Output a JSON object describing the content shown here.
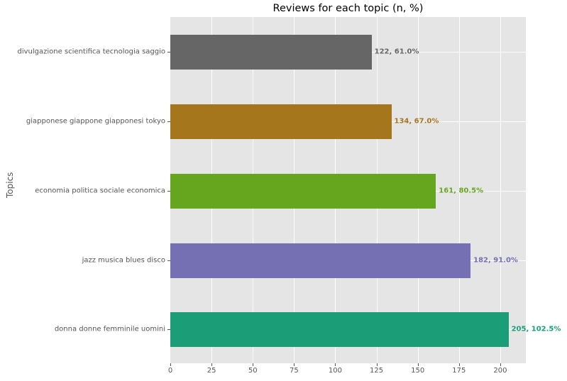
{
  "chart_data": {
    "type": "bar",
    "orientation": "horizontal",
    "title": "Reviews for each topic (n, %)",
    "xlabel": "",
    "ylabel": "Topics",
    "xlim": [
      0,
      215.5
    ],
    "xticks": [
      0,
      25,
      50,
      75,
      100,
      125,
      150,
      175,
      200
    ],
    "grid": true,
    "legend": null,
    "categories": [
      "donna donne femminile uomini",
      "jazz musica blues disco",
      "economia politica sociale economica",
      "giapponese giappone giapponesi tokyo",
      "divulgazione scientifica tecnologia saggio"
    ],
    "values": [
      205,
      182,
      161,
      134,
      122
    ],
    "percent": [
      102.5,
      91.0,
      80.5,
      67.0,
      61.0
    ],
    "labels": [
      "205, 102.5%",
      "182, 91.0%",
      "161, 80.5%",
      "134, 67.0%",
      "122, 61.0%"
    ],
    "colors": [
      "#1b9e77",
      "#7570b3",
      "#66a61e",
      "#a6761d",
      "#666666"
    ]
  }
}
